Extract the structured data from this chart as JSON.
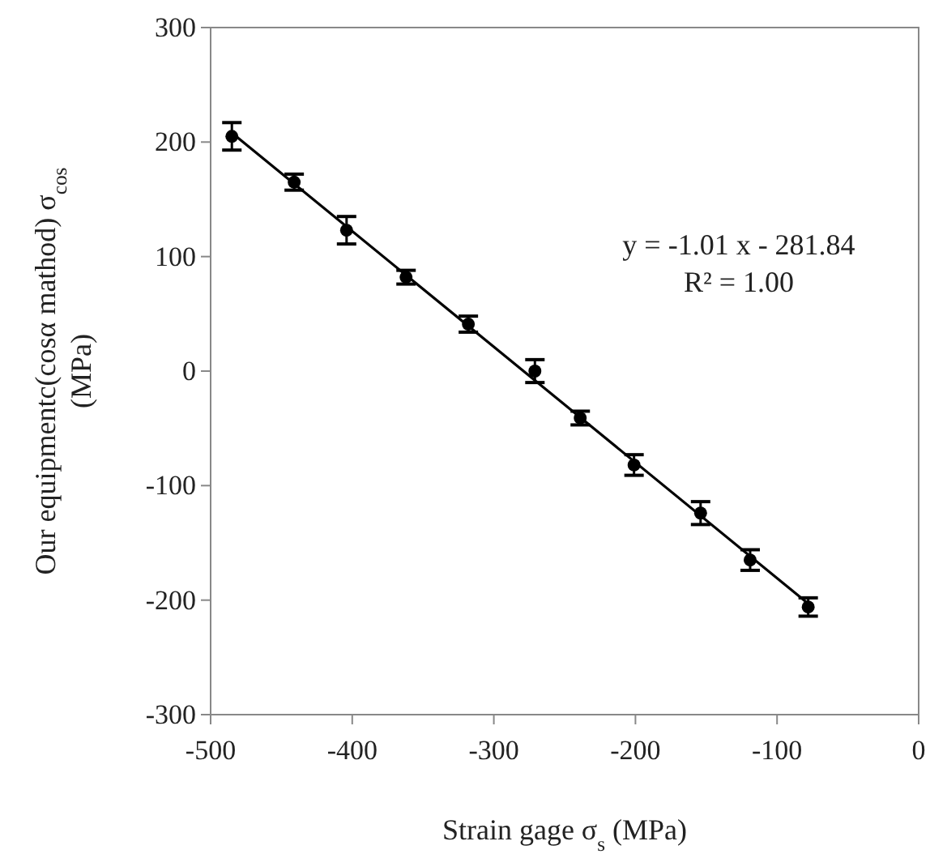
{
  "chart_data": {
    "type": "scatter",
    "xlabel": "Strain gage σ$_{s}$ (MPa)",
    "ylabel": [
      "Our equipmentc(cosα mathod) σ$_{cos}$",
      "(MPa)"
    ],
    "x": [
      -485,
      -441,
      -404,
      -362,
      -318,
      -271,
      -239,
      -201,
      -154,
      -119,
      -78
    ],
    "series": [
      {
        "color": "#000000",
        "marker": "circle",
        "values": [
          205,
          165,
          123,
          82,
          41,
          0,
          -41,
          -82,
          -124,
          -165,
          -206
        ],
        "errors": [
          12,
          7,
          12,
          6,
          7,
          10,
          6,
          9,
          10,
          9,
          8
        ]
      },
      {
        "type": "line",
        "color": "#000000",
        "x": [
          -485,
          -78
        ],
        "values": [
          208,
          -203
        ]
      }
    ],
    "xlim": [
      -500,
      0
    ],
    "xticks": [
      -500,
      -400,
      -300,
      -200,
      -100,
      0
    ],
    "ylim": [
      -300,
      300
    ],
    "yticks": [
      -300,
      -200,
      -100,
      0,
      100,
      200,
      300
    ],
    "annotations": [
      "y = -1.01 x - 281.84",
      "R² = 1.00"
    ],
    "grid": false
  }
}
